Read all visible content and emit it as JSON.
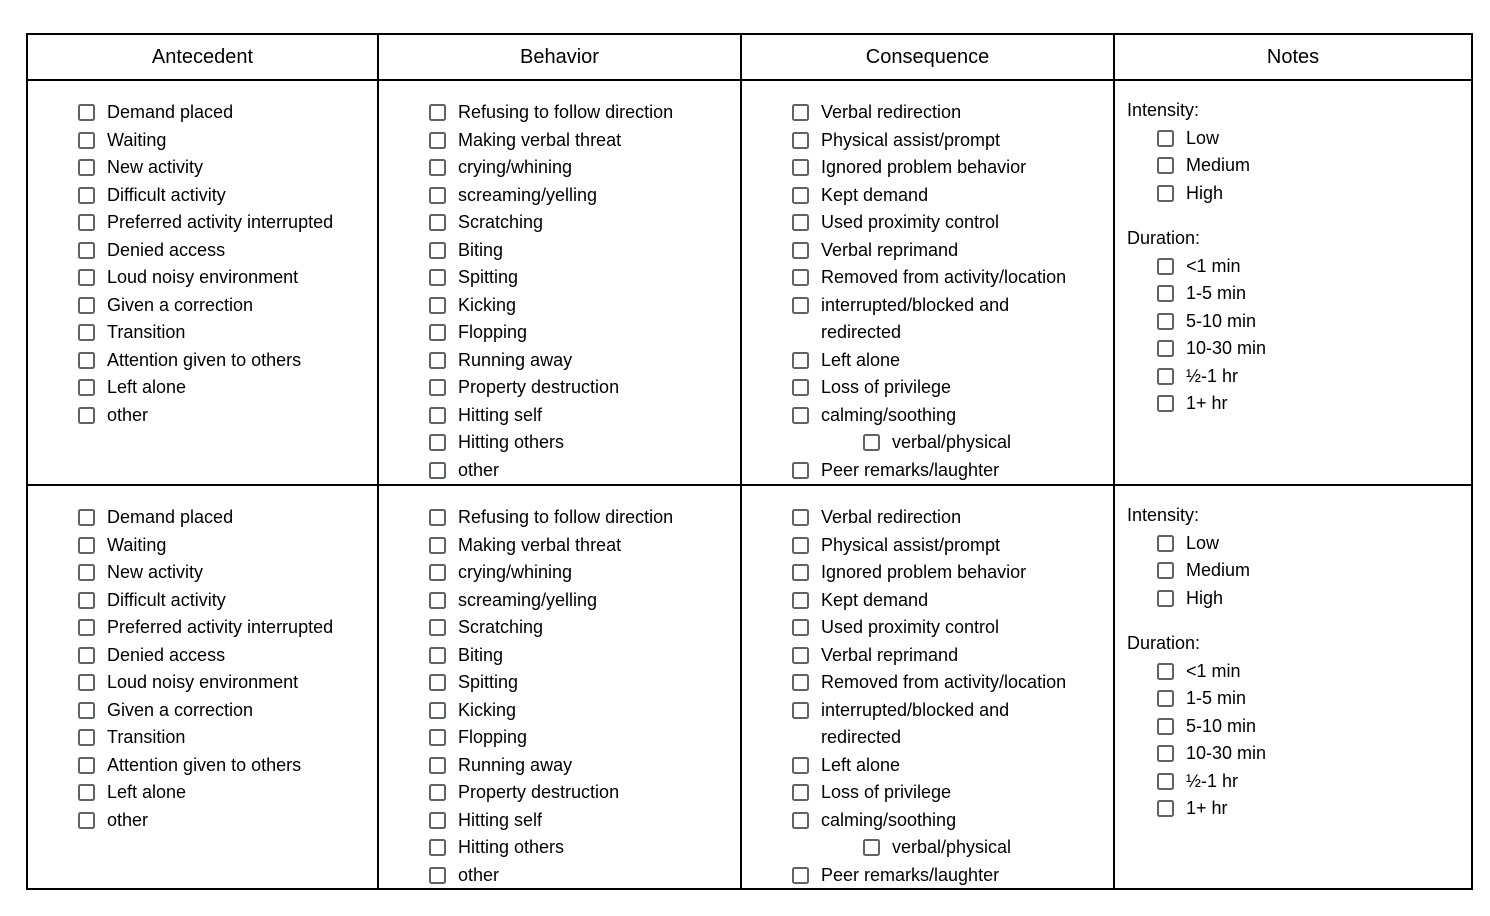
{
  "table": {
    "headers": [
      "Antecedent",
      "Behavior",
      "Consequence",
      "Notes"
    ],
    "row_count": 2,
    "antecedent": {
      "items": [
        {
          "text": "Demand placed"
        },
        {
          "text": "Waiting"
        },
        {
          "text": "New activity"
        },
        {
          "text": "Difficult activity"
        },
        {
          "text": "Preferred activity interrupted"
        },
        {
          "text": "Denied access"
        },
        {
          "text": "Loud noisy environment"
        },
        {
          "text": "Given a correction"
        },
        {
          "text": "Transition"
        },
        {
          "text": "Attention given to others"
        },
        {
          "text": "Left alone"
        },
        {
          "text": "other"
        }
      ]
    },
    "behavior": {
      "items": [
        {
          "text": "Refusing to follow direction"
        },
        {
          "text": "Making verbal threat"
        },
        {
          "text": "crying/whining"
        },
        {
          "text": "screaming/yelling"
        },
        {
          "text": "Scratching"
        },
        {
          "text": "Biting"
        },
        {
          "text": "Spitting"
        },
        {
          "text": "Kicking"
        },
        {
          "text": "Flopping"
        },
        {
          "text": "Running away"
        },
        {
          "text": "Property destruction"
        },
        {
          "text": "Hitting self"
        },
        {
          "text": "Hitting others"
        },
        {
          "text": "other"
        }
      ]
    },
    "consequence": {
      "items": [
        {
          "text": "Verbal redirection"
        },
        {
          "text": "Physical assist/prompt"
        },
        {
          "text": "Ignored problem behavior"
        },
        {
          "text": "Kept demand"
        },
        {
          "text": "Used proximity control"
        },
        {
          "text": "Verbal reprimand"
        },
        {
          "text": "Removed from activity/location"
        },
        {
          "text": "interrupted/blocked and redirected",
          "lines": [
            "interrupted/blocked and",
            "redirected"
          ]
        },
        {
          "text": "Left alone"
        },
        {
          "text": "Loss of privilege"
        },
        {
          "text": "calming/soothing"
        },
        {
          "text": "verbal/physical",
          "sub": true
        },
        {
          "text": "Peer remarks/laughter"
        }
      ]
    },
    "notes": {
      "sections": [
        {
          "label": "Intensity:",
          "options": [
            "Low",
            "Medium",
            "High"
          ]
        },
        {
          "label": "Duration:",
          "options": [
            "<1 min",
            "1-5 min",
            "5-10 min",
            "10-30 min",
            "½-1 hr",
            "1+ hr"
          ]
        }
      ]
    }
  },
  "colors": {
    "background": "#ffffff",
    "table_border": "#000000",
    "checkbox_border": "#5f6368",
    "text": "#000000"
  }
}
